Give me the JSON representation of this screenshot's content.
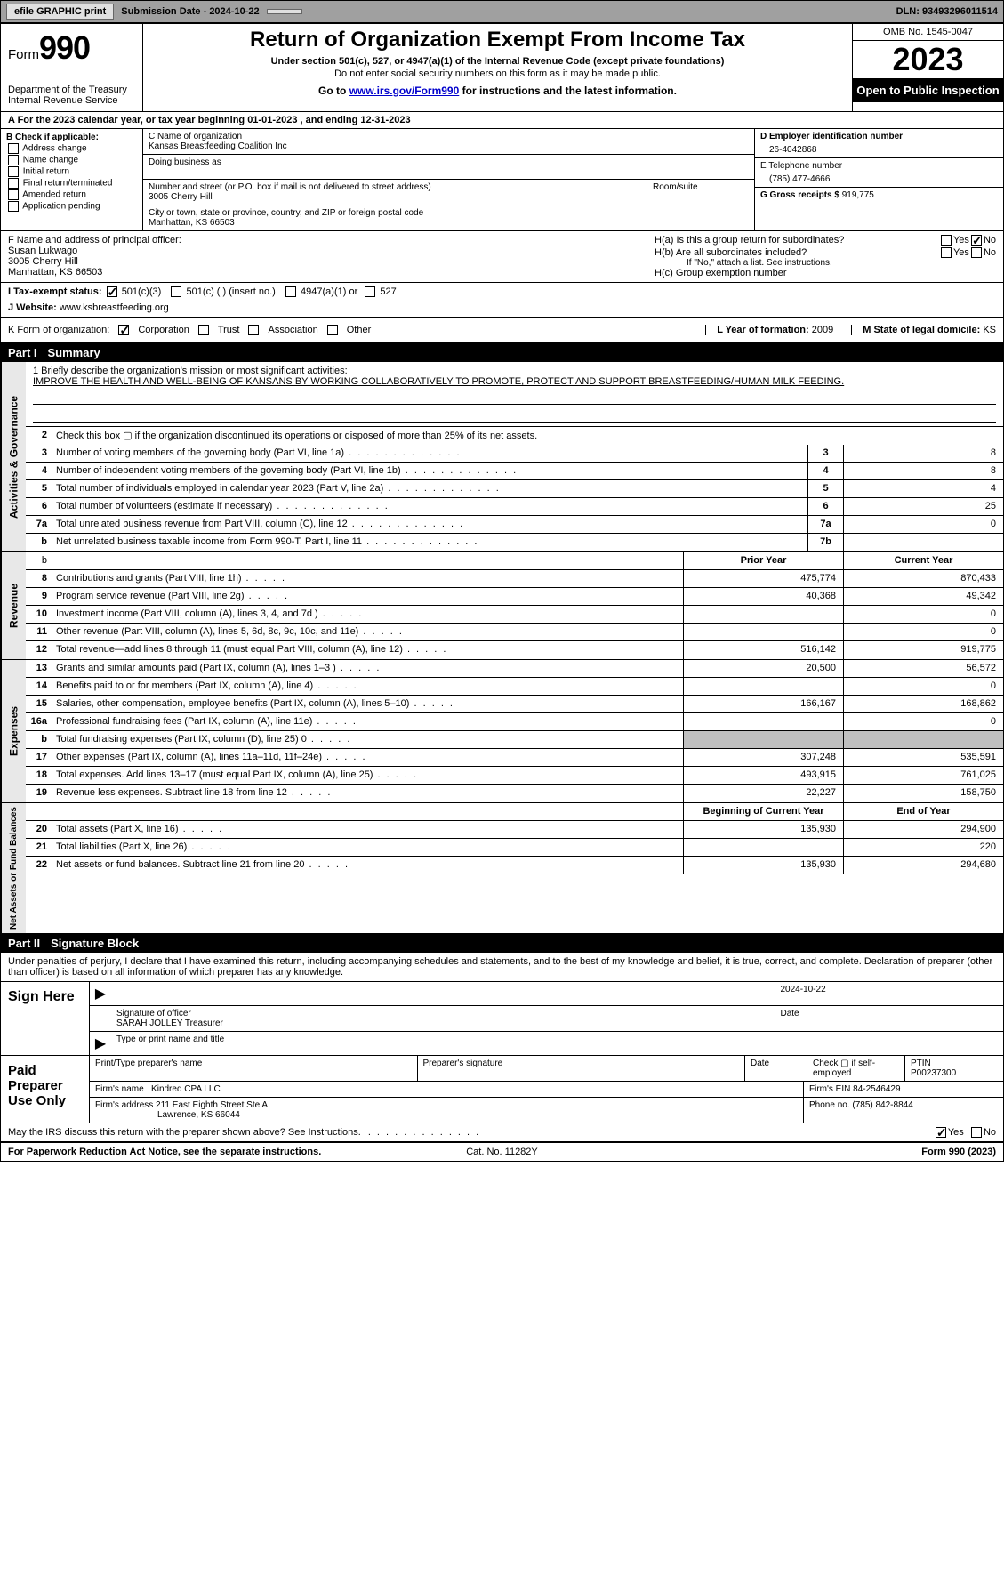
{
  "topbar": {
    "efile_label": "efile GRAPHIC print",
    "submission_label": "Submission Date - 2024-10-22",
    "dln": "DLN: 93493296011514"
  },
  "header": {
    "form_prefix": "Form",
    "form_number": "990",
    "dept": "Department of the Treasury",
    "irs": "Internal Revenue Service",
    "title": "Return of Organization Exempt From Income Tax",
    "subtitle": "Under section 501(c), 527, or 4947(a)(1) of the Internal Revenue Code (except private foundations)",
    "warn": "Do not enter social security numbers on this form as it may be made public.",
    "goto_prefix": "Go to ",
    "goto_link": "www.irs.gov/Form990",
    "goto_suffix": " for instructions and the latest information.",
    "omb": "OMB No. 1545-0047",
    "year": "2023",
    "open": "Open to Public Inspection"
  },
  "row_a": "A For the 2023 calendar year, or tax year beginning 01-01-2023   , and ending 12-31-2023",
  "box_b": {
    "title": "B Check if applicable:",
    "opts": [
      "Address change",
      "Name change",
      "Initial return",
      "Final return/terminated",
      "Amended return",
      "Application pending"
    ]
  },
  "box_c": {
    "name_lbl": "C Name of organization",
    "name": "Kansas Breastfeeding Coalition Inc",
    "dba_lbl": "Doing business as",
    "addr_lbl": "Number and street (or P.O. box if mail is not delivered to street address)",
    "room_lbl": "Room/suite",
    "addr": "3005 Cherry Hill",
    "city_lbl": "City or town, state or province, country, and ZIP or foreign postal code",
    "city": "Manhattan, KS  66503"
  },
  "box_d": {
    "lbl": "D Employer identification number",
    "val": "26-4042868"
  },
  "box_e": {
    "lbl": "E Telephone number",
    "val": "(785) 477-4666"
  },
  "box_g": {
    "lbl": "G Gross receipts $ ",
    "val": "919,775"
  },
  "box_f": {
    "lbl": "F Name and address of principal officer:",
    "name": "Susan Lukwago",
    "addr1": "3005 Cherry Hill",
    "addr2": "Manhattan, KS  66503"
  },
  "box_h": {
    "ha": "H(a)  Is this a group return for subordinates?",
    "hb": "H(b)  Are all subordinates included?",
    "hb_note": "If \"No,\" attach a list. See instructions.",
    "hc": "H(c)  Group exemption number ",
    "yes": "Yes",
    "no": "No"
  },
  "row_i": {
    "lbl": "I   Tax-exempt status:",
    "o1": "501(c)(3)",
    "o2": "501(c) (  ) (insert no.)",
    "o3": "4947(a)(1) or",
    "o4": "527"
  },
  "row_j": {
    "lbl": "J   Website: ",
    "val": "www.ksbreastfeeding.org"
  },
  "row_k": {
    "lbl": "K Form of organization:",
    "o1": "Corporation",
    "o2": "Trust",
    "o3": "Association",
    "o4": "Other"
  },
  "row_l": {
    "lbl": "L Year of formation: ",
    "val": "2009"
  },
  "row_m": {
    "lbl": "M State of legal domicile: ",
    "val": "KS"
  },
  "part1": {
    "num": "Part I",
    "title": "Summary"
  },
  "mission": {
    "line1_lbl": "1  Briefly describe the organization's mission or most significant activities:",
    "text": "IMPROVE THE HEALTH AND WELL-BEING OF KANSANS BY WORKING COLLABORATIVELY TO PROMOTE, PROTECT AND SUPPORT BREASTFEEDING/HUMAN MILK FEEDING."
  },
  "gov_rows": [
    {
      "n": "2",
      "label": "Check this box ▢ if the organization discontinued its operations or disposed of more than 25% of its net assets.",
      "box": "",
      "val": ""
    },
    {
      "n": "3",
      "label": "Number of voting members of the governing body (Part VI, line 1a)",
      "box": "3",
      "val": "8"
    },
    {
      "n": "4",
      "label": "Number of independent voting members of the governing body (Part VI, line 1b)",
      "box": "4",
      "val": "8"
    },
    {
      "n": "5",
      "label": "Total number of individuals employed in calendar year 2023 (Part V, line 2a)",
      "box": "5",
      "val": "4"
    },
    {
      "n": "6",
      "label": "Total number of volunteers (estimate if necessary)",
      "box": "6",
      "val": "25"
    },
    {
      "n": "7a",
      "label": "Total unrelated business revenue from Part VIII, column (C), line 12",
      "box": "7a",
      "val": "0"
    },
    {
      "n": "b",
      "label": "Net unrelated business taxable income from Form 990-T, Part I, line 11",
      "box": "7b",
      "val": ""
    }
  ],
  "rev_head": {
    "prior": "Prior Year",
    "current": "Current Year"
  },
  "rev_rows": [
    {
      "n": "8",
      "label": "Contributions and grants (Part VIII, line 1h)",
      "p": "475,774",
      "c": "870,433"
    },
    {
      "n": "9",
      "label": "Program service revenue (Part VIII, line 2g)",
      "p": "40,368",
      "c": "49,342"
    },
    {
      "n": "10",
      "label": "Investment income (Part VIII, column (A), lines 3, 4, and 7d )",
      "p": "",
      "c": "0"
    },
    {
      "n": "11",
      "label": "Other revenue (Part VIII, column (A), lines 5, 6d, 8c, 9c, 10c, and 11e)",
      "p": "",
      "c": "0"
    },
    {
      "n": "12",
      "label": "Total revenue—add lines 8 through 11 (must equal Part VIII, column (A), line 12)",
      "p": "516,142",
      "c": "919,775"
    }
  ],
  "exp_rows": [
    {
      "n": "13",
      "label": "Grants and similar amounts paid (Part IX, column (A), lines 1–3 )",
      "p": "20,500",
      "c": "56,572"
    },
    {
      "n": "14",
      "label": "Benefits paid to or for members (Part IX, column (A), line 4)",
      "p": "",
      "c": "0"
    },
    {
      "n": "15",
      "label": "Salaries, other compensation, employee benefits (Part IX, column (A), lines 5–10)",
      "p": "166,167",
      "c": "168,862"
    },
    {
      "n": "16a",
      "label": "Professional fundraising fees (Part IX, column (A), line 11e)",
      "p": "",
      "c": "0"
    },
    {
      "n": "b",
      "label": "Total fundraising expenses (Part IX, column (D), line 25) 0",
      "p": "SHADE",
      "c": "SHADE"
    },
    {
      "n": "17",
      "label": "Other expenses (Part IX, column (A), lines 11a–11d, 11f–24e)",
      "p": "307,248",
      "c": "535,591"
    },
    {
      "n": "18",
      "label": "Total expenses. Add lines 13–17 (must equal Part IX, column (A), line 25)",
      "p": "493,915",
      "c": "761,025"
    },
    {
      "n": "19",
      "label": "Revenue less expenses. Subtract line 18 from line 12",
      "p": "22,227",
      "c": "158,750"
    }
  ],
  "na_head": {
    "prior": "Beginning of Current Year",
    "current": "End of Year"
  },
  "na_rows": [
    {
      "n": "20",
      "label": "Total assets (Part X, line 16)",
      "p": "135,930",
      "c": "294,900"
    },
    {
      "n": "21",
      "label": "Total liabilities (Part X, line 26)",
      "p": "",
      "c": "220"
    },
    {
      "n": "22",
      "label": "Net assets or fund balances. Subtract line 21 from line 20",
      "p": "135,930",
      "c": "294,680"
    }
  ],
  "vtabs": {
    "gov": "Activities & Governance",
    "rev": "Revenue",
    "exp": "Expenses",
    "na": "Net Assets or\nFund Balances"
  },
  "part2": {
    "num": "Part II",
    "title": "Signature Block"
  },
  "sig_decl": "Under penalties of perjury, I declare that I have examined this return, including accompanying schedules and statements, and to the best of my knowledge and belief, it is true, correct, and complete. Declaration of preparer (other than officer) is based on all information of which preparer has any knowledge.",
  "sign_here": "Sign Here",
  "sig_date": "2024-10-22",
  "sig_officer_lbl": "Signature of officer",
  "sig_officer": "SARAH JOLLEY Treasurer",
  "sig_type_lbl": "Type or print name and title",
  "date_lbl": "Date",
  "paid_prep": "Paid Preparer Use Only",
  "prep": {
    "name_lbl": "Print/Type preparer's name",
    "sig_lbl": "Preparer's signature",
    "date_lbl": "Date",
    "check_lbl": "Check ▢ if self-employed",
    "ptin_lbl": "PTIN",
    "ptin": "P00237300",
    "firm_name_lbl": "Firm's name ",
    "firm_name": "Kindred CPA LLC",
    "firm_ein_lbl": "Firm's EIN ",
    "firm_ein": "84-2546429",
    "firm_addr_lbl": "Firm's address ",
    "firm_addr1": "211 East Eighth Street Ste A",
    "firm_addr2": "Lawrence, KS  66044",
    "phone_lbl": "Phone no. ",
    "phone": "(785) 842-8844"
  },
  "discuss": "May the IRS discuss this return with the preparer shown above? See Instructions.",
  "footer": {
    "left": "For Paperwork Reduction Act Notice, see the separate instructions.",
    "mid": "Cat. No. 11282Y",
    "right": "Form 990 (2023)"
  }
}
